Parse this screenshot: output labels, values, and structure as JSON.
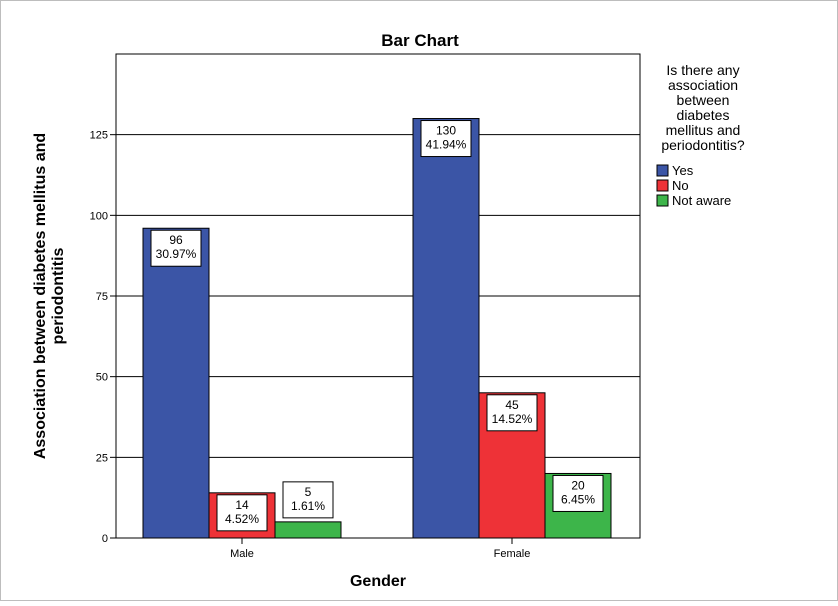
{
  "chart_data": {
    "type": "bar",
    "title": "Bar Chart",
    "xlabel": "Gender",
    "ylabel": "Association between diabetes mellitus and periodontitis",
    "ylim": [
      0,
      150
    ],
    "yticks": [
      "0",
      "25",
      "50",
      "75",
      "100",
      "125"
    ],
    "categories": [
      "Male",
      "Female"
    ],
    "legend_title": "Is there any association between diabetes mellitus and periodontitis?",
    "legend_position": "right",
    "grid": "horizontal",
    "series": [
      {
        "name": "Yes",
        "color": "#3b55a6",
        "values": [
          96,
          130
        ],
        "labels": [
          "96",
          "130"
        ],
        "percents": [
          "30.97%",
          "41.94%"
        ]
      },
      {
        "name": "No",
        "color": "#ee3237",
        "values": [
          14,
          45
        ],
        "labels": [
          "14",
          "45"
        ],
        "percents": [
          "4.52%",
          "14.52%"
        ]
      },
      {
        "name": "Not aware",
        "color": "#3db54a",
        "values": [
          5,
          20
        ],
        "labels": [
          "5",
          "20"
        ],
        "percents": [
          "1.61%",
          "6.45%"
        ]
      }
    ]
  }
}
